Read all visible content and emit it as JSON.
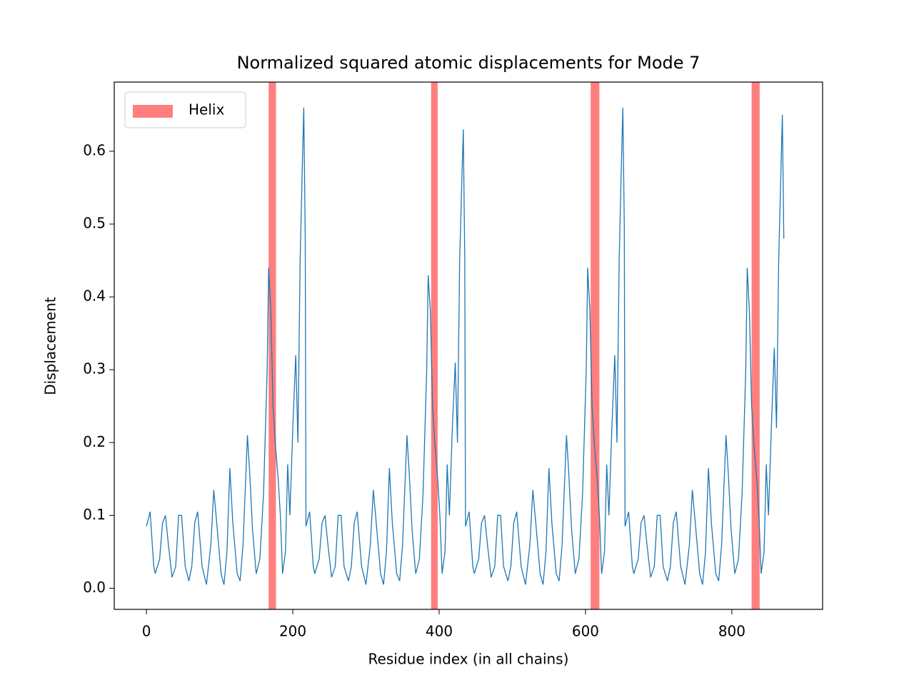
{
  "chart_data": {
    "type": "line",
    "title": "Normalized squared atomic displacements for Mode 7",
    "x_label": "Residue index (in all chains)",
    "y_label": "Displacement",
    "xlim": [
      -44,
      924
    ],
    "ylim": [
      -0.029,
      0.695
    ],
    "xticks": [
      0,
      200,
      400,
      600,
      800
    ],
    "yticks": [
      {
        "value": 0,
        "label": "0.0"
      },
      0.1,
      0.2,
      0.3,
      0.4,
      0.5,
      0.6
    ],
    "legend": "upper left",
    "spans": {
      "name": "Helix",
      "color": "#ff0000",
      "alpha": 0.5,
      "ranges": [
        [
          167,
          177
        ],
        [
          389,
          398
        ],
        [
          607,
          619
        ],
        [
          827,
          838
        ]
      ]
    },
    "series": [
      {
        "color": "#1f77b4",
        "x": [
          0,
          5,
          10,
          12,
          18,
          22,
          26,
          30,
          35,
          40,
          44,
          48,
          53,
          58,
          62,
          66,
          70,
          76,
          82,
          88,
          92,
          96,
          102,
          106,
          110,
          114,
          118,
          124,
          128,
          132,
          138,
          141,
          145,
          150,
          155,
          160,
          165,
          167,
          170,
          173,
          176,
          180,
          183,
          186,
          190,
          193,
          196,
          200,
          204,
          207,
          210,
          213,
          215,
          217,
          218,
          223,
          228,
          230,
          236,
          240,
          244,
          248,
          253,
          258,
          262,
          266,
          270,
          276,
          280,
          284,
          288,
          294,
          300,
          306,
          310,
          314,
          320,
          324,
          328,
          332,
          336,
          342,
          346,
          350,
          356,
          359,
          363,
          368,
          373,
          378,
          383,
          385,
          388,
          391,
          394,
          398,
          401,
          404,
          408,
          411,
          414,
          418,
          422,
          425,
          428,
          431,
          433,
          435,
          436,
          441,
          446,
          448,
          454,
          458,
          462,
          466,
          471,
          476,
          480,
          484,
          488,
          494,
          498,
          502,
          506,
          512,
          518,
          524,
          528,
          532,
          538,
          542,
          546,
          550,
          554,
          560,
          564,
          568,
          574,
          577,
          581,
          586,
          591,
          596,
          601,
          603,
          606,
          609,
          612,
          616,
          619,
          622,
          626,
          629,
          632,
          636,
          640,
          643,
          646,
          649,
          651,
          653,
          654,
          659,
          664,
          666,
          672,
          676,
          680,
          684,
          689,
          694,
          698,
          702,
          706,
          712,
          716,
          720,
          724,
          730,
          736,
          742,
          746,
          750,
          756,
          760,
          764,
          768,
          772,
          778,
          782,
          786,
          792,
          795,
          799,
          804,
          809,
          814,
          819,
          821,
          824,
          827,
          830,
          834,
          837,
          840,
          844,
          847,
          850,
          854,
          858,
          861,
          864,
          867,
          869,
          871
        ],
        "values": [
          0.085,
          0.105,
          0.03,
          0.02,
          0.04,
          0.09,
          0.1,
          0.06,
          0.015,
          0.03,
          0.1,
          0.1,
          0.03,
          0.01,
          0.03,
          0.09,
          0.105,
          0.03,
          0.005,
          0.06,
          0.135,
          0.09,
          0.02,
          0.005,
          0.05,
          0.165,
          0.09,
          0.02,
          0.01,
          0.06,
          0.21,
          0.16,
          0.08,
          0.02,
          0.04,
          0.13,
          0.3,
          0.44,
          0.38,
          0.25,
          0.2,
          0.15,
          0.1,
          0.02,
          0.05,
          0.17,
          0.1,
          0.22,
          0.32,
          0.2,
          0.45,
          0.58,
          0.66,
          0.48,
          0.085,
          0.105,
          0.03,
          0.02,
          0.04,
          0.09,
          0.1,
          0.06,
          0.015,
          0.03,
          0.1,
          0.1,
          0.03,
          0.01,
          0.03,
          0.09,
          0.105,
          0.03,
          0.005,
          0.06,
          0.135,
          0.09,
          0.02,
          0.005,
          0.05,
          0.165,
          0.09,
          0.02,
          0.01,
          0.06,
          0.21,
          0.16,
          0.08,
          0.02,
          0.04,
          0.13,
          0.3,
          0.43,
          0.38,
          0.25,
          0.2,
          0.15,
          0.1,
          0.02,
          0.05,
          0.17,
          0.1,
          0.22,
          0.31,
          0.2,
          0.45,
          0.56,
          0.63,
          0.45,
          0.085,
          0.105,
          0.03,
          0.02,
          0.04,
          0.09,
          0.1,
          0.06,
          0.015,
          0.03,
          0.1,
          0.1,
          0.03,
          0.01,
          0.03,
          0.09,
          0.105,
          0.03,
          0.005,
          0.06,
          0.135,
          0.09,
          0.02,
          0.005,
          0.05,
          0.165,
          0.09,
          0.02,
          0.01,
          0.06,
          0.21,
          0.16,
          0.08,
          0.02,
          0.04,
          0.13,
          0.3,
          0.44,
          0.38,
          0.25,
          0.2,
          0.15,
          0.1,
          0.02,
          0.05,
          0.17,
          0.1,
          0.22,
          0.32,
          0.2,
          0.45,
          0.58,
          0.66,
          0.5,
          0.085,
          0.105,
          0.03,
          0.02,
          0.04,
          0.09,
          0.1,
          0.06,
          0.015,
          0.03,
          0.1,
          0.1,
          0.03,
          0.01,
          0.03,
          0.09,
          0.105,
          0.03,
          0.005,
          0.06,
          0.135,
          0.09,
          0.02,
          0.005,
          0.05,
          0.165,
          0.09,
          0.02,
          0.01,
          0.06,
          0.21,
          0.16,
          0.08,
          0.02,
          0.04,
          0.13,
          0.3,
          0.44,
          0.38,
          0.25,
          0.2,
          0.15,
          0.1,
          0.02,
          0.05,
          0.17,
          0.1,
          0.22,
          0.33,
          0.22,
          0.45,
          0.57,
          0.65,
          0.48
        ]
      }
    ]
  }
}
